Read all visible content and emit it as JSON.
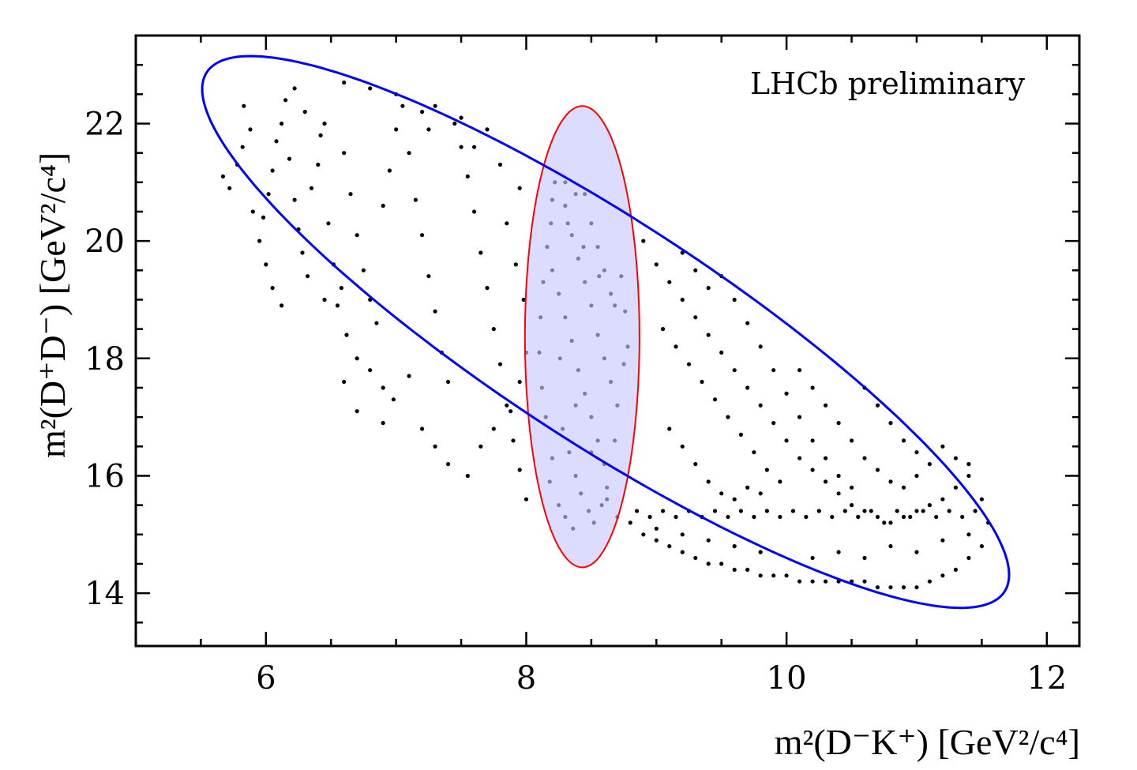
{
  "chart_data": {
    "type": "scatter",
    "annotation": "LHCb preliminary",
    "xlabel": {
      "text": "m²(D⁻K⁺) [GeV²/c⁴]"
    },
    "ylabel": {
      "text": "m²(D⁺D⁻) [GeV²/c⁴]"
    },
    "xlim": [
      5.0,
      12.25
    ],
    "ylim": [
      13.1,
      23.5
    ],
    "xticks": [
      6,
      8,
      10,
      12
    ],
    "yticks": [
      14,
      16,
      18,
      20,
      22
    ],
    "x_minor_step": 0.5,
    "y_minor_step": 0.5,
    "grid": false,
    "boundary": {
      "shape": "ellipse",
      "color": "#0000ff",
      "center": [
        8.61,
        18.45
      ],
      "semi_axis_x": 3.1,
      "semi_axis_y": 4.7,
      "correlation": -0.88
    },
    "selection_band": {
      "shape": "ellipse",
      "edge_color": "#ff0000",
      "fill_color": "#dcdcff",
      "center": [
        8.43,
        18.37
      ],
      "semi_axis_x": 0.44,
      "semi_axis_y": 3.93
    },
    "marker_colors": {
      "outside": "#000000",
      "inside": "#7f7f9b"
    },
    "series": [
      {
        "values": [
          [
            5.67,
            21.1
          ],
          [
            5.72,
            20.9
          ],
          [
            5.78,
            21.3
          ],
          [
            5.82,
            21.6
          ],
          [
            5.88,
            21.9
          ],
          [
            5.83,
            22.3
          ],
          [
            5.9,
            20.5
          ],
          [
            5.95,
            20.0
          ],
          [
            6.02,
            20.8
          ],
          [
            6.05,
            21.2
          ],
          [
            6.08,
            21.7
          ],
          [
            6.12,
            22.0
          ],
          [
            6.15,
            22.4
          ],
          [
            6.18,
            21.4
          ],
          [
            6.22,
            20.7
          ],
          [
            6.25,
            20.2
          ],
          [
            6.28,
            19.8
          ],
          [
            6.32,
            19.4
          ],
          [
            6.35,
            20.9
          ],
          [
            6.4,
            21.3
          ],
          [
            6.42,
            21.8
          ],
          [
            6.48,
            20.3
          ],
          [
            6.52,
            19.6
          ],
          [
            6.58,
            19.2
          ],
          [
            6.3,
            22.2
          ],
          [
            6.22,
            22.6
          ],
          [
            6.45,
            22.0
          ],
          [
            6.6,
            21.5
          ],
          [
            6.65,
            20.8
          ],
          [
            6.7,
            20.1
          ],
          [
            6.75,
            19.5
          ],
          [
            6.8,
            19.0
          ],
          [
            6.85,
            18.6
          ],
          [
            6.9,
            20.6
          ],
          [
            6.95,
            21.2
          ],
          [
            7.0,
            21.9
          ],
          [
            7.05,
            22.3
          ],
          [
            7.1,
            21.5
          ],
          [
            7.15,
            20.7
          ],
          [
            7.2,
            20.1
          ],
          [
            7.25,
            19.4
          ],
          [
            7.3,
            18.8
          ],
          [
            7.35,
            18.1
          ],
          [
            7.4,
            17.6
          ],
          [
            7.45,
            22.0
          ],
          [
            7.5,
            21.6
          ],
          [
            7.55,
            21.1
          ],
          [
            7.6,
            20.5
          ],
          [
            7.65,
            19.8
          ],
          [
            7.7,
            19.2
          ],
          [
            7.75,
            18.5
          ],
          [
            7.8,
            17.9
          ],
          [
            7.85,
            17.2
          ],
          [
            7.9,
            16.6
          ],
          [
            7.95,
            16.1
          ],
          [
            8.0,
            15.6
          ],
          [
            6.62,
            18.4
          ],
          [
            6.7,
            18.0
          ],
          [
            6.8,
            17.8
          ],
          [
            6.9,
            17.5
          ],
          [
            6.98,
            17.3
          ],
          [
            6.55,
            18.9
          ],
          [
            6.45,
            19.0
          ],
          [
            7.1,
            17.7
          ],
          [
            7.2,
            16.8
          ],
          [
            7.3,
            16.5
          ],
          [
            7.4,
            16.2
          ],
          [
            7.55,
            16.0
          ],
          [
            7.65,
            16.5
          ],
          [
            7.75,
            16.8
          ],
          [
            7.88,
            17.1
          ],
          [
            7.95,
            17.6
          ],
          [
            8.0,
            18.1
          ],
          [
            7.98,
            19.0
          ],
          [
            7.92,
            19.6
          ],
          [
            7.85,
            20.3
          ],
          [
            7.95,
            20.9
          ],
          [
            7.6,
            21.6
          ],
          [
            7.7,
            21.9
          ],
          [
            7.8,
            21.3
          ],
          [
            7.5,
            22.1
          ],
          [
            7.3,
            22.3
          ],
          [
            7.25,
            21.9
          ],
          [
            7.2,
            22.2
          ],
          [
            7.0,
            22.5
          ],
          [
            6.8,
            22.6
          ],
          [
            6.6,
            22.7
          ],
          [
            6.0,
            19.6
          ],
          [
            6.05,
            19.2
          ],
          [
            6.12,
            18.9
          ],
          [
            5.98,
            20.4
          ],
          [
            6.9,
            16.9
          ],
          [
            6.7,
            17.1
          ],
          [
            6.6,
            17.6
          ],
          [
            8.22,
            21.0
          ],
          [
            8.3,
            20.6
          ],
          [
            8.35,
            20.1
          ],
          [
            8.4,
            19.7
          ],
          [
            8.45,
            19.3
          ],
          [
            8.5,
            18.9
          ],
          [
            8.55,
            18.4
          ],
          [
            8.6,
            18.0
          ],
          [
            8.65,
            17.6
          ],
          [
            8.7,
            17.2
          ],
          [
            8.28,
            16.8
          ],
          [
            8.33,
            16.4
          ],
          [
            8.38,
            16.0
          ],
          [
            8.42,
            15.7
          ],
          [
            8.48,
            15.4
          ],
          [
            8.52,
            15.2
          ],
          [
            8.58,
            15.5
          ],
          [
            8.62,
            15.8
          ],
          [
            8.25,
            15.5
          ],
          [
            8.3,
            15.3
          ],
          [
            8.36,
            15.1
          ],
          [
            8.18,
            15.9
          ],
          [
            8.2,
            16.3
          ],
          [
            8.15,
            17.0
          ],
          [
            8.12,
            17.5
          ],
          [
            8.1,
            18.1
          ],
          [
            8.11,
            18.7
          ],
          [
            8.13,
            19.3
          ],
          [
            8.16,
            19.9
          ],
          [
            8.19,
            20.3
          ],
          [
            8.73,
            19.4
          ],
          [
            8.76,
            18.8
          ],
          [
            8.78,
            18.2
          ],
          [
            8.75,
            17.9
          ],
          [
            8.68,
            16.6
          ],
          [
            8.6,
            16.2
          ],
          [
            8.55,
            16.6
          ],
          [
            8.5,
            17.0
          ],
          [
            8.45,
            17.4
          ],
          [
            8.4,
            17.8
          ],
          [
            8.35,
            18.3
          ],
          [
            8.3,
            18.7
          ],
          [
            8.25,
            19.1
          ],
          [
            8.2,
            19.5
          ],
          [
            8.5,
            20.3
          ],
          [
            8.55,
            19.9
          ],
          [
            8.6,
            19.5
          ],
          [
            8.65,
            19.1
          ],
          [
            8.45,
            20.8
          ],
          [
            8.38,
            20.8
          ],
          [
            8.3,
            21.0
          ],
          [
            8.9,
            20.0
          ],
          [
            9.0,
            19.6
          ],
          [
            9.1,
            19.3
          ],
          [
            9.2,
            19.0
          ],
          [
            9.3,
            18.7
          ],
          [
            9.4,
            18.4
          ],
          [
            9.5,
            18.1
          ],
          [
            9.6,
            17.8
          ],
          [
            9.7,
            17.5
          ],
          [
            9.8,
            17.2
          ],
          [
            9.9,
            16.9
          ],
          [
            10.0,
            16.6
          ],
          [
            10.1,
            16.3
          ],
          [
            10.2,
            16.1
          ],
          [
            10.3,
            15.9
          ],
          [
            10.4,
            15.7
          ],
          [
            10.5,
            15.5
          ],
          [
            10.6,
            15.4
          ],
          [
            10.7,
            15.3
          ],
          [
            10.8,
            15.2
          ],
          [
            10.9,
            15.3
          ],
          [
            11.0,
            15.4
          ],
          [
            11.1,
            15.5
          ],
          [
            11.2,
            15.6
          ],
          [
            11.3,
            15.8
          ],
          [
            11.4,
            16.0
          ],
          [
            11.5,
            15.6
          ],
          [
            11.55,
            15.2
          ],
          [
            11.5,
            14.8
          ],
          [
            11.4,
            14.6
          ],
          [
            11.3,
            14.4
          ],
          [
            11.2,
            14.3
          ],
          [
            11.1,
            14.2
          ],
          [
            11.0,
            14.1
          ],
          [
            10.9,
            14.1
          ],
          [
            10.8,
            14.1
          ],
          [
            10.7,
            14.1
          ],
          [
            10.6,
            14.2
          ],
          [
            10.5,
            14.2
          ],
          [
            10.4,
            14.2
          ],
          [
            10.3,
            14.2
          ],
          [
            10.2,
            14.2
          ],
          [
            10.1,
            14.2
          ],
          [
            10.0,
            14.3
          ],
          [
            9.9,
            14.3
          ],
          [
            9.8,
            14.3
          ],
          [
            9.7,
            14.4
          ],
          [
            9.6,
            14.4
          ],
          [
            9.5,
            14.5
          ],
          [
            9.4,
            14.5
          ],
          [
            9.3,
            14.6
          ],
          [
            9.2,
            14.7
          ],
          [
            9.1,
            14.8
          ],
          [
            9.0,
            14.9
          ],
          [
            8.9,
            15.0
          ],
          [
            8.8,
            15.2
          ],
          [
            8.85,
            15.4
          ],
          [
            8.95,
            15.3
          ],
          [
            9.05,
            15.4
          ],
          [
            9.15,
            15.3
          ],
          [
            9.25,
            15.4
          ],
          [
            9.35,
            15.3
          ],
          [
            9.45,
            15.4
          ],
          [
            9.55,
            15.3
          ],
          [
            9.65,
            15.4
          ],
          [
            9.75,
            15.3
          ],
          [
            9.85,
            15.4
          ],
          [
            9.95,
            15.3
          ],
          [
            10.05,
            15.4
          ],
          [
            10.15,
            15.3
          ],
          [
            10.25,
            15.4
          ],
          [
            10.35,
            15.3
          ],
          [
            10.45,
            15.4
          ],
          [
            10.55,
            15.3
          ],
          [
            10.65,
            15.4
          ],
          [
            10.75,
            15.2
          ],
          [
            10.85,
            15.4
          ],
          [
            10.95,
            15.3
          ],
          [
            11.05,
            15.4
          ],
          [
            11.15,
            15.3
          ],
          [
            11.25,
            15.4
          ],
          [
            11.35,
            15.3
          ],
          [
            11.45,
            15.4
          ],
          [
            9.5,
            19.4
          ],
          [
            9.6,
            19.0
          ],
          [
            9.7,
            18.6
          ],
          [
            9.8,
            18.2
          ],
          [
            9.9,
            17.8
          ],
          [
            10.0,
            17.4
          ],
          [
            10.1,
            17.0
          ],
          [
            10.2,
            16.6
          ],
          [
            10.3,
            16.3
          ],
          [
            10.4,
            16.0
          ],
          [
            10.5,
            15.8
          ],
          [
            9.2,
            19.8
          ],
          [
            9.3,
            19.5
          ],
          [
            9.4,
            19.2
          ],
          [
            9.05,
            18.5
          ],
          [
            9.15,
            18.2
          ],
          [
            9.25,
            17.9
          ],
          [
            9.35,
            17.6
          ],
          [
            9.45,
            17.3
          ],
          [
            9.55,
            17.0
          ],
          [
            9.65,
            16.7
          ],
          [
            9.75,
            16.4
          ],
          [
            9.85,
            16.1
          ],
          [
            9.95,
            15.9
          ],
          [
            9.1,
            16.8
          ],
          [
            9.2,
            16.5
          ],
          [
            9.3,
            16.2
          ],
          [
            9.4,
            15.9
          ],
          [
            9.5,
            15.7
          ],
          [
            9.6,
            15.6
          ],
          [
            9.7,
            15.8
          ],
          [
            9.8,
            15.7
          ],
          [
            10.1,
            17.8
          ],
          [
            10.2,
            17.5
          ],
          [
            10.3,
            17.2
          ],
          [
            10.4,
            16.9
          ],
          [
            10.5,
            16.6
          ],
          [
            10.6,
            16.3
          ],
          [
            10.7,
            16.1
          ],
          [
            10.8,
            15.9
          ],
          [
            10.9,
            15.8
          ],
          [
            11.0,
            16.0
          ],
          [
            11.1,
            16.2
          ],
          [
            10.6,
            17.5
          ],
          [
            10.7,
            17.2
          ],
          [
            10.8,
            16.9
          ],
          [
            10.9,
            16.6
          ],
          [
            11.0,
            16.4
          ],
          [
            11.2,
            16.5
          ],
          [
            11.3,
            16.3
          ],
          [
            11.4,
            16.2
          ],
          [
            10.2,
            14.6
          ],
          [
            10.4,
            14.7
          ],
          [
            10.6,
            14.6
          ],
          [
            10.8,
            14.8
          ],
          [
            11.0,
            14.7
          ],
          [
            11.2,
            14.9
          ],
          [
            11.4,
            15.0
          ],
          [
            9.8,
            14.7
          ],
          [
            9.6,
            14.8
          ],
          [
            9.4,
            14.9
          ],
          [
            9.2,
            15.0
          ],
          [
            9.0,
            15.1
          ],
          [
            8.2,
            20.7
          ],
          [
            8.32,
            20.3
          ],
          [
            8.44,
            19.9
          ],
          [
            8.56,
            19.4
          ],
          [
            8.68,
            18.9
          ],
          [
            8.26,
            18.0
          ],
          [
            8.38,
            17.2
          ],
          [
            8.5,
            16.4
          ],
          [
            8.62,
            15.6
          ],
          [
            8.7,
            15.3
          ]
        ]
      }
    ]
  }
}
